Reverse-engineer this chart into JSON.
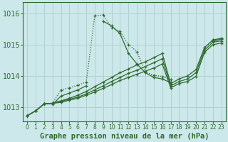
{
  "bg_color": "#cde8ea",
  "line_color": "#2d6a2d",
  "grid_color": "#b0d0d0",
  "xlabel": "Graphe pression niveau de la mer (hPa)",
  "ylim": [
    1012.55,
    1016.35
  ],
  "yticks": [
    1013,
    1014,
    1015,
    1016
  ],
  "xlim": [
    -0.5,
    23.5
  ],
  "xticks": [
    0,
    1,
    2,
    3,
    4,
    5,
    6,
    7,
    8,
    9,
    10,
    11,
    12,
    13,
    14,
    15,
    16,
    17,
    18,
    19,
    20,
    21,
    22,
    23
  ],
  "series": [
    [
      1012.72,
      1012.88,
      1013.1,
      1013.12,
      1013.55,
      1013.62,
      1013.7,
      1013.8,
      1015.92,
      1015.95,
      1015.55,
      1015.42,
      1015.0,
      1014.78,
      1014.12,
      1014.02,
      1013.98,
      1013.88,
      null,
      null,
      null,
      1014.9,
      1015.15,
      1015.2
    ],
    [
      null,
      null,
      null,
      1013.08,
      1013.35,
      1013.45,
      1013.55,
      1013.68,
      null,
      1015.75,
      1015.6,
      1015.35,
      1014.72,
      1014.38,
      1014.1,
      1013.95,
      1013.9,
      1013.78,
      null,
      null,
      null,
      null,
      1015.1,
      1015.18
    ],
    [
      1012.72,
      1012.88,
      1013.1,
      1013.12,
      1013.2,
      1013.28,
      1013.38,
      1013.5,
      1013.65,
      1013.8,
      1013.95,
      1014.1,
      1014.22,
      1014.35,
      1014.45,
      1014.58,
      1014.72,
      1013.75,
      1013.9,
      1014.0,
      1014.2,
      1014.9,
      1015.15,
      1015.2
    ],
    [
      1012.72,
      1012.88,
      1013.1,
      1013.12,
      1013.18,
      1013.25,
      1013.32,
      1013.42,
      1013.55,
      1013.68,
      1013.82,
      1013.95,
      1014.08,
      1014.18,
      1014.3,
      1014.42,
      1014.55,
      1013.68,
      1013.82,
      1013.9,
      1014.1,
      1014.82,
      1015.08,
      1015.12
    ],
    [
      1012.72,
      1012.88,
      1013.1,
      1013.12,
      1013.15,
      1013.22,
      1013.28,
      1013.38,
      1013.48,
      1013.6,
      1013.72,
      1013.85,
      1013.95,
      1014.05,
      1014.15,
      1014.25,
      1014.38,
      1013.62,
      1013.75,
      1013.82,
      1013.98,
      1014.75,
      1015.0,
      1015.05
    ]
  ],
  "tick_fontsize": 7,
  "label_fontsize": 7.5
}
